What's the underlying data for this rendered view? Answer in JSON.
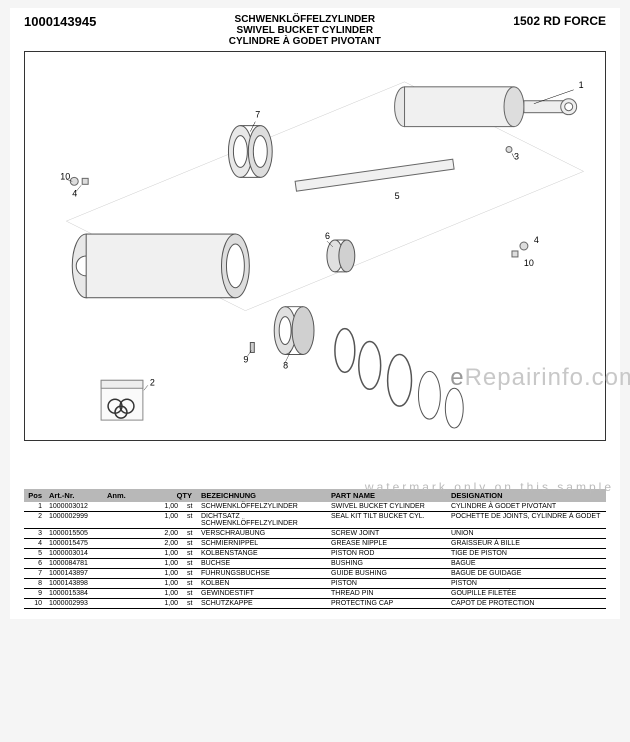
{
  "header": {
    "part_number": "1000143945",
    "title_de": "SCHWENKLÖFFELZYLINDER",
    "title_en": "SWIVEL BUCKET CYLINDER",
    "title_fr": "CYLINDRE À GODET PIVOTANT",
    "model": "1502 RD FORCE"
  },
  "watermark": {
    "main_prefix": "e",
    "main_body": "Repairinfo.com",
    "sub": "watermark only on this sample"
  },
  "diagram": {
    "callouts": [
      "1",
      "2",
      "3",
      "4",
      "5",
      "6",
      "7",
      "8",
      "9",
      "10"
    ]
  },
  "table": {
    "headers": {
      "pos": "Pos",
      "art": "Art.-Nr.",
      "anm": "Anm.",
      "qty": "QTY",
      "de": "BEZEICHNUNG",
      "en": "PART NAME",
      "fr": "DESIGNATION"
    },
    "rows": [
      {
        "pos": "1",
        "art": "1000003012",
        "anm": "",
        "qty": "1,00",
        "unit": "st",
        "de": "SCHWENKLÖFFELZYLINDER",
        "en": "SWIVEL BUCKET CYLINDER",
        "fr": "CYLINDRE À GODET PIVOTANT"
      },
      {
        "pos": "2",
        "art": "1000002999",
        "anm": "",
        "qty": "1,00",
        "unit": "st",
        "de": "DICHTSATZ SCHWENKLÖFFELZYLINDER",
        "en": "SEAL KIT TILT BUCKET CYL.",
        "fr": "POCHETTE DE JOINTS, CYLINDRE À GODET"
      },
      {
        "pos": "3",
        "art": "1000015505",
        "anm": "",
        "qty": "2,00",
        "unit": "st",
        "de": "VERSCHRAUBUNG",
        "en": "SCREW JOINT",
        "fr": "UNION"
      },
      {
        "pos": "4",
        "art": "1000015475",
        "anm": "",
        "qty": "2,00",
        "unit": "st",
        "de": "SCHMIERNIPPEL",
        "en": "GREASE NIPPLE",
        "fr": "GRAISSEUR À BILLE"
      },
      {
        "pos": "5",
        "art": "1000003014",
        "anm": "",
        "qty": "1,00",
        "unit": "st",
        "de": "KOLBENSTANGE",
        "en": "PISTON ROD",
        "fr": "TIGE DE PISTON"
      },
      {
        "pos": "6",
        "art": "1000084781",
        "anm": "",
        "qty": "1,00",
        "unit": "st",
        "de": "BUCHSE",
        "en": "BUSHING",
        "fr": "BAGUE"
      },
      {
        "pos": "7",
        "art": "1000143897",
        "anm": "",
        "qty": "1,00",
        "unit": "st",
        "de": "FÜHRUNGSBUCHSE",
        "en": "GUIDE BUSHING",
        "fr": "BAGUE DE GUIDAGE"
      },
      {
        "pos": "8",
        "art": "1000143898",
        "anm": "",
        "qty": "1,00",
        "unit": "st",
        "de": "KOLBEN",
        "en": "PISTON",
        "fr": "PISTON"
      },
      {
        "pos": "9",
        "art": "1000015384",
        "anm": "",
        "qty": "1,00",
        "unit": "st",
        "de": "GEWINDESTIFT",
        "en": "THREAD PIN",
        "fr": "GOUPILLE FILETÉE"
      },
      {
        "pos": "10",
        "art": "1000002993",
        "anm": "",
        "qty": "1,00",
        "unit": "st",
        "de": "SCHUTZKAPPE",
        "en": "PROTECTING CAP",
        "fr": "CAPOT DE PROTECTION"
      }
    ]
  },
  "colors": {
    "header_bg": "#b8b8b8",
    "text": "#000000",
    "watermark": "#c0c0c0"
  }
}
